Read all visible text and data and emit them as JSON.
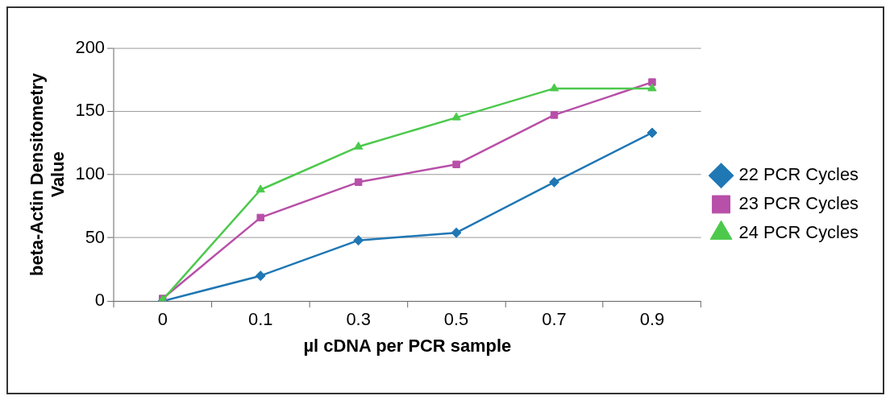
{
  "chart_data": {
    "type": "line",
    "xlabel": "µl cDNA per PCR sample",
    "ylabel": "beta-Actin Densitometry Value",
    "categories": [
      "0",
      "0.1",
      "0.3",
      "0.5",
      "0.7",
      "0.9"
    ],
    "series": [
      {
        "name": "22 PCR Cycles",
        "color": "#1f77b4",
        "marker": "diamond",
        "values": [
          0,
          20,
          48,
          54,
          94,
          133
        ]
      },
      {
        "name": "23 PCR Cycles",
        "color": "#b84fa8",
        "marker": "square",
        "values": [
          2,
          66,
          94,
          108,
          147,
          173
        ]
      },
      {
        "name": "24 PCR Cycles",
        "color": "#4cc94c",
        "marker": "triangle",
        "values": [
          1,
          88,
          122,
          145,
          168,
          168
        ]
      }
    ],
    "ylim": [
      0,
      200
    ],
    "yticks": [
      0,
      50,
      100,
      150,
      200
    ],
    "grid": "y",
    "legend": "right",
    "line_style": "solid"
  }
}
